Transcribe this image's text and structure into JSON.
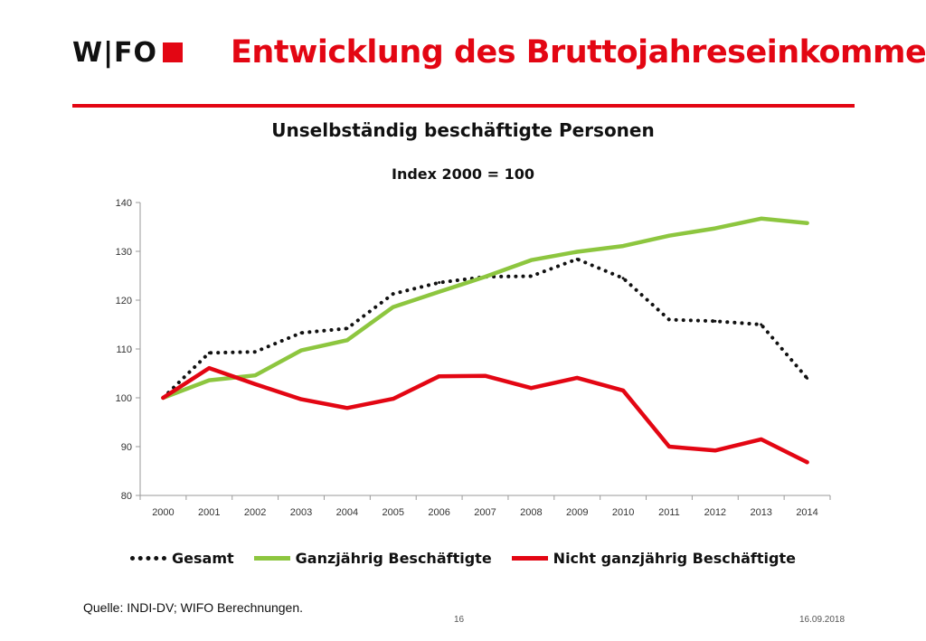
{
  "header": {
    "logo_text": "W|FO",
    "title": "Entwicklung des Bruttojahreseinkommens"
  },
  "chart_data": {
    "type": "line",
    "title": "Unselbständig beschäftigte Personen",
    "subtitle": "Index 2000 = 100",
    "categories": [
      "2000",
      "2001",
      "2002",
      "2003",
      "2004",
      "2005",
      "2006",
      "2007",
      "2008",
      "2009",
      "2010",
      "2011",
      "2012",
      "2013",
      "2014"
    ],
    "ylim": [
      80,
      140
    ],
    "yticks": [
      80,
      90,
      100,
      110,
      120,
      130,
      140
    ],
    "grid": false,
    "legend_position": "bottom",
    "series": [
      {
        "name": "Gesamt",
        "color": "#111111",
        "style": "dotted",
        "values": [
          100,
          109.2,
          109.4,
          113.3,
          114.2,
          121.3,
          123.6,
          124.8,
          124.9,
          128.4,
          124.5,
          116.0,
          115.7,
          115.0,
          104.0
        ]
      },
      {
        "name": "Ganzjährig Beschäftigte",
        "color": "#8dc63f",
        "style": "solid",
        "values": [
          100,
          103.6,
          104.6,
          109.7,
          111.8,
          118.6,
          121.7,
          124.8,
          128.2,
          129.9,
          131.1,
          133.2,
          134.7,
          136.7,
          135.8
        ]
      },
      {
        "name": "Nicht ganzjährig Beschäftigte",
        "color": "#e30613",
        "style": "solid",
        "values": [
          100,
          106.1,
          102.8,
          99.7,
          97.9,
          99.8,
          104.4,
          104.5,
          102.0,
          104.1,
          101.5,
          90.0,
          89.2,
          91.5,
          86.8
        ]
      }
    ]
  },
  "footer": {
    "source": "Quelle: INDI-DV; WIFO Berechnungen.",
    "page": "16",
    "date": "16.09.2018"
  }
}
